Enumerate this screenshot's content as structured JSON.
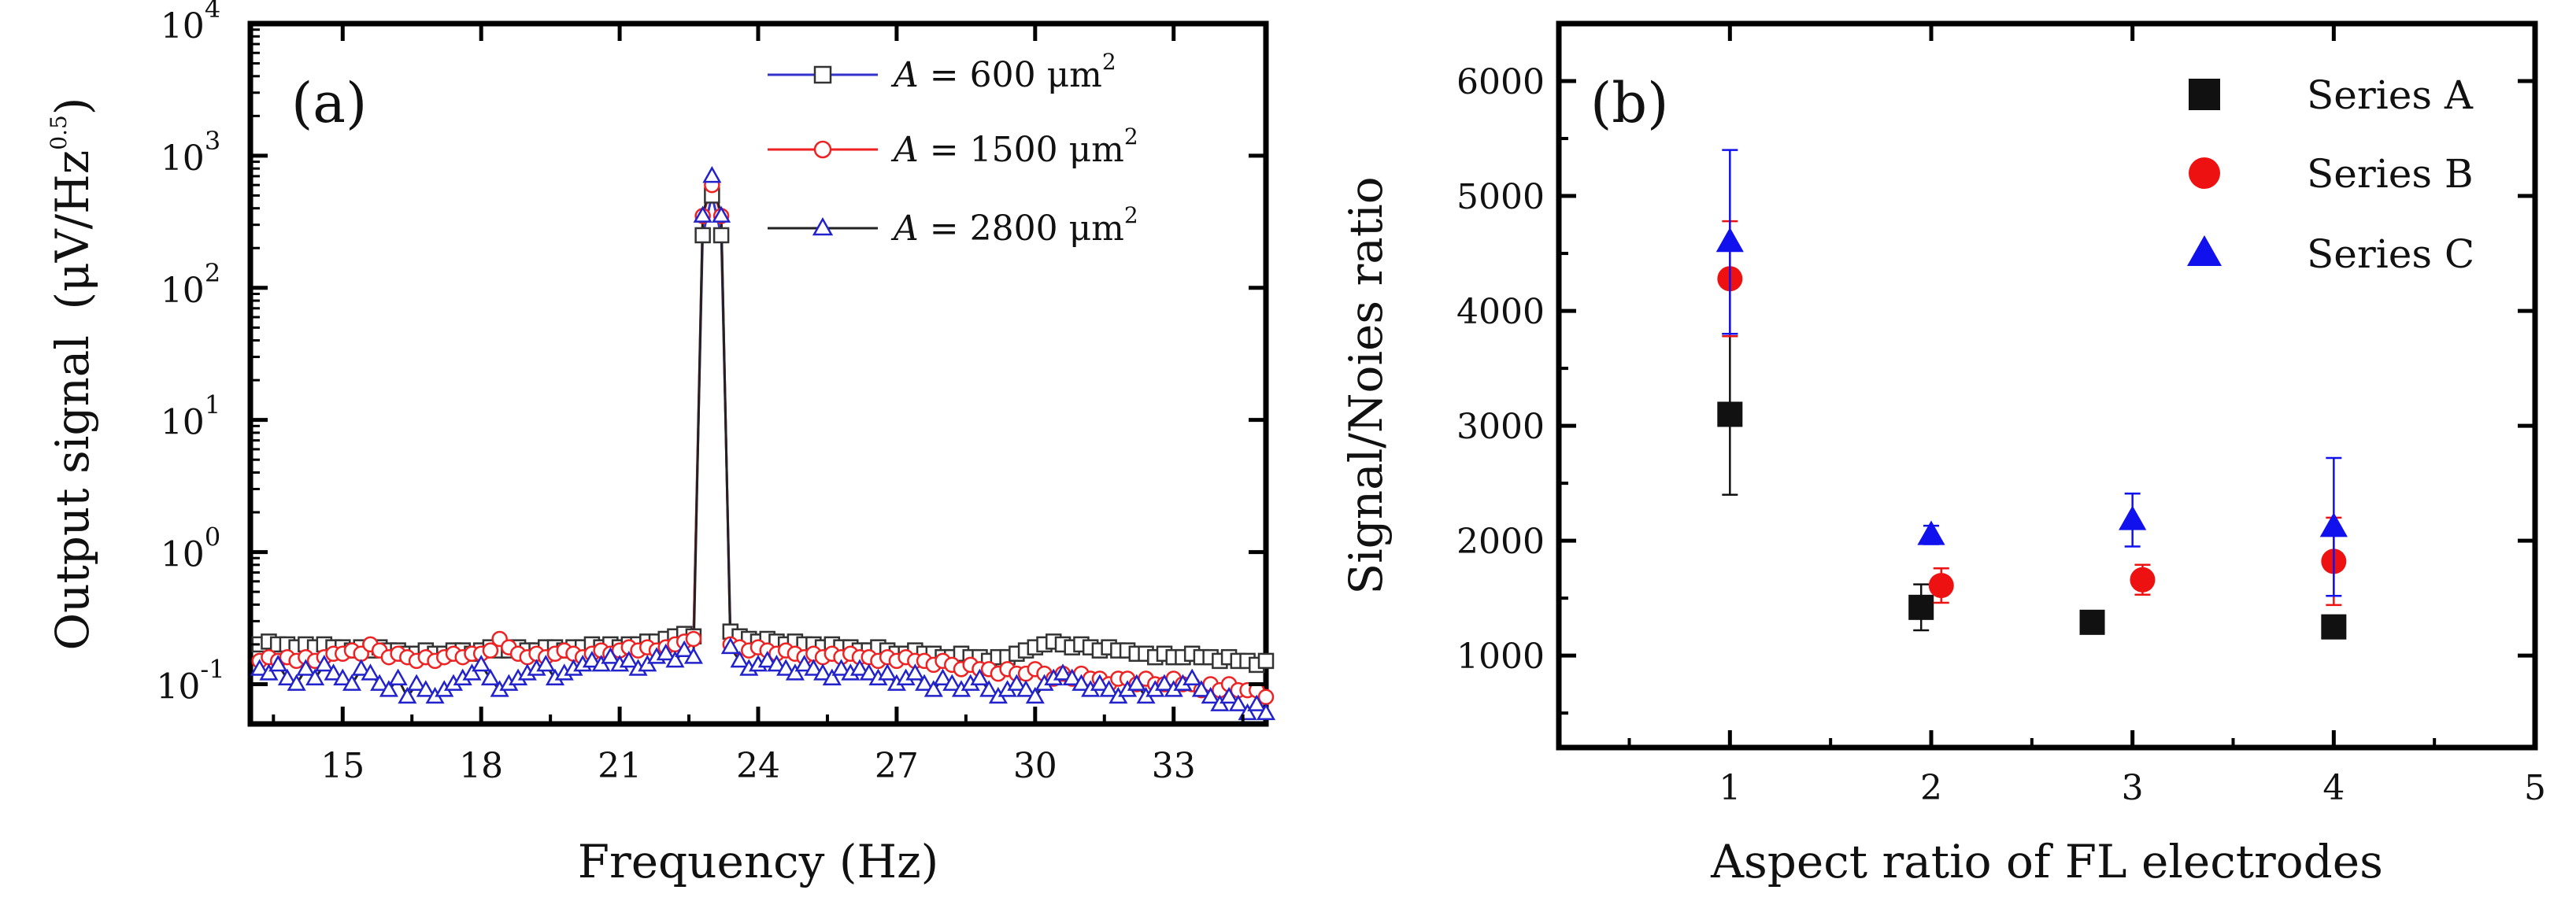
{
  "chart_data": [
    {
      "type": "line",
      "panel_label": "(a)",
      "xlabel": "Frequency (Hz)",
      "ylabel": "Output signal",
      "ylabel_unit": "(μV/Hz",
      "ylabel_unit_sup": "0.5",
      "ylabel_unit_close": ")",
      "xlim": [
        13,
        35
      ],
      "ylim": [
        0.05,
        10000
      ],
      "y_scale": "log",
      "x_ticks": [
        "15",
        "18",
        "21",
        "24",
        "27",
        "30",
        "33"
      ],
      "y_ticks": [
        {
          "base": "10",
          "exp": "-1",
          "value": 0.1
        },
        {
          "base": "10",
          "exp": "0",
          "value": 1
        },
        {
          "base": "10",
          "exp": "1",
          "value": 10
        },
        {
          "base": "10",
          "exp": "2",
          "value": 100
        },
        {
          "base": "10",
          "exp": "3",
          "value": 1000
        },
        {
          "base": "10",
          "exp": "4",
          "value": 10000
        }
      ],
      "grid": false,
      "legend_position": "top-right",
      "series": [
        {
          "name": "A = 600 μm²",
          "legend_italic": "A",
          "legend_rest": " = 600 μm",
          "legend_sup": "2",
          "marker": "square",
          "marker_color": "#333333",
          "line_color": "#3333cc",
          "x": [
            13.2,
            13.4,
            13.6,
            13.8,
            14.0,
            14.2,
            14.4,
            14.6,
            14.8,
            15.0,
            15.2,
            15.4,
            15.6,
            15.8,
            16.0,
            16.2,
            16.4,
            16.6,
            16.8,
            17.0,
            17.2,
            17.4,
            17.6,
            17.8,
            18.0,
            18.2,
            18.4,
            18.6,
            18.8,
            19.0,
            19.2,
            19.4,
            19.6,
            19.8,
            20.0,
            20.2,
            20.4,
            20.6,
            20.8,
            21.0,
            21.2,
            21.4,
            21.6,
            21.8,
            22.0,
            22.2,
            22.4,
            22.6,
            22.8,
            23.0,
            23.2,
            23.4,
            23.6,
            23.8,
            24.0,
            24.2,
            24.4,
            24.6,
            24.8,
            25.0,
            25.2,
            25.4,
            25.6,
            25.8,
            26.0,
            26.2,
            26.4,
            26.6,
            26.8,
            27.0,
            27.2,
            27.4,
            27.6,
            27.8,
            28.0,
            28.2,
            28.4,
            28.6,
            28.8,
            29.0,
            29.2,
            29.4,
            29.6,
            29.8,
            30.0,
            30.2,
            30.4,
            30.6,
            30.8,
            31.0,
            31.2,
            31.4,
            31.6,
            31.8,
            32.0,
            32.2,
            32.4,
            32.6,
            32.8,
            33.0,
            33.2,
            33.4,
            33.6,
            33.8,
            34.0,
            34.2,
            34.4,
            34.6,
            34.8,
            35.0
          ],
          "y": [
            0.2,
            0.21,
            0.2,
            0.2,
            0.19,
            0.2,
            0.19,
            0.2,
            0.19,
            0.19,
            0.18,
            0.19,
            0.18,
            0.19,
            0.18,
            0.18,
            0.17,
            0.17,
            0.18,
            0.17,
            0.17,
            0.18,
            0.18,
            0.17,
            0.18,
            0.19,
            0.18,
            0.18,
            0.19,
            0.18,
            0.18,
            0.19,
            0.19,
            0.18,
            0.19,
            0.19,
            0.2,
            0.19,
            0.2,
            0.19,
            0.2,
            0.2,
            0.21,
            0.21,
            0.22,
            0.23,
            0.24,
            0.23,
            250,
            500,
            250,
            0.25,
            0.23,
            0.22,
            0.21,
            0.22,
            0.21,
            0.2,
            0.21,
            0.2,
            0.2,
            0.19,
            0.2,
            0.19,
            0.19,
            0.18,
            0.18,
            0.19,
            0.18,
            0.17,
            0.17,
            0.18,
            0.17,
            0.17,
            0.16,
            0.16,
            0.17,
            0.16,
            0.16,
            0.15,
            0.16,
            0.16,
            0.17,
            0.18,
            0.19,
            0.2,
            0.21,
            0.2,
            0.19,
            0.2,
            0.19,
            0.18,
            0.19,
            0.18,
            0.18,
            0.17,
            0.17,
            0.16,
            0.17,
            0.16,
            0.16,
            0.17,
            0.16,
            0.16,
            0.15,
            0.16,
            0.15,
            0.15,
            0.14,
            0.15
          ]
        },
        {
          "name": "A = 1500 μm²",
          "legend_italic": "A",
          "legend_rest": " = 1500 μm",
          "legend_sup": "2",
          "marker": "circle",
          "marker_color": "#ee2222",
          "line_color": "#ee2222",
          "x": [
            13.2,
            13.4,
            13.6,
            13.8,
            14.0,
            14.2,
            14.4,
            14.6,
            14.8,
            15.0,
            15.2,
            15.4,
            15.6,
            15.8,
            16.0,
            16.2,
            16.4,
            16.6,
            16.8,
            17.0,
            17.2,
            17.4,
            17.6,
            17.8,
            18.0,
            18.2,
            18.4,
            18.6,
            18.8,
            19.0,
            19.2,
            19.4,
            19.6,
            19.8,
            20.0,
            20.2,
            20.4,
            20.6,
            20.8,
            21.0,
            21.2,
            21.4,
            21.6,
            21.8,
            22.0,
            22.2,
            22.4,
            22.6,
            22.8,
            23.0,
            23.2,
            23.4,
            23.6,
            23.8,
            24.0,
            24.2,
            24.4,
            24.6,
            24.8,
            25.0,
            25.2,
            25.4,
            25.6,
            25.8,
            26.0,
            26.2,
            26.4,
            26.6,
            26.8,
            27.0,
            27.2,
            27.4,
            27.6,
            27.8,
            28.0,
            28.2,
            28.4,
            28.6,
            28.8,
            29.0,
            29.2,
            29.4,
            29.6,
            29.8,
            30.0,
            30.2,
            30.4,
            30.6,
            30.8,
            31.0,
            31.2,
            31.4,
            31.6,
            31.8,
            32.0,
            32.2,
            32.4,
            32.6,
            32.8,
            33.0,
            33.2,
            33.4,
            33.6,
            33.8,
            34.0,
            34.2,
            34.4,
            34.6,
            34.8,
            35.0
          ],
          "y": [
            0.15,
            0.16,
            0.15,
            0.16,
            0.15,
            0.16,
            0.15,
            0.16,
            0.17,
            0.17,
            0.18,
            0.17,
            0.2,
            0.18,
            0.16,
            0.17,
            0.16,
            0.15,
            0.16,
            0.15,
            0.16,
            0.17,
            0.16,
            0.17,
            0.17,
            0.18,
            0.22,
            0.19,
            0.17,
            0.16,
            0.17,
            0.16,
            0.17,
            0.18,
            0.17,
            0.16,
            0.17,
            0.18,
            0.17,
            0.18,
            0.19,
            0.18,
            0.19,
            0.18,
            0.19,
            0.2,
            0.21,
            0.22,
            350,
            600,
            350,
            0.2,
            0.19,
            0.18,
            0.19,
            0.18,
            0.17,
            0.18,
            0.17,
            0.16,
            0.17,
            0.16,
            0.17,
            0.16,
            0.17,
            0.16,
            0.16,
            0.15,
            0.16,
            0.15,
            0.16,
            0.15,
            0.15,
            0.14,
            0.15,
            0.14,
            0.13,
            0.14,
            0.13,
            0.13,
            0.12,
            0.13,
            0.12,
            0.12,
            0.13,
            0.12,
            0.11,
            0.12,
            0.11,
            0.12,
            0.11,
            0.11,
            0.1,
            0.11,
            0.11,
            0.1,
            0.11,
            0.1,
            0.1,
            0.11,
            0.1,
            0.1,
            0.09,
            0.1,
            0.09,
            0.1,
            0.09,
            0.09,
            0.09,
            0.08
          ]
        },
        {
          "name": "A = 2800 μm²",
          "legend_italic": "A",
          "legend_rest": " = 2800 μm",
          "legend_sup": "2",
          "marker": "triangle",
          "marker_color": "#2222cc",
          "line_color": "#222222",
          "x": [
            13.2,
            13.4,
            13.6,
            13.8,
            14.0,
            14.2,
            14.4,
            14.6,
            14.8,
            15.0,
            15.2,
            15.4,
            15.6,
            15.8,
            16.0,
            16.2,
            16.4,
            16.6,
            16.8,
            17.0,
            17.2,
            17.4,
            17.6,
            17.8,
            18.0,
            18.2,
            18.4,
            18.6,
            18.8,
            19.0,
            19.2,
            19.4,
            19.6,
            19.8,
            20.0,
            20.2,
            20.4,
            20.6,
            20.8,
            21.0,
            21.2,
            21.4,
            21.6,
            21.8,
            22.0,
            22.2,
            22.4,
            22.6,
            22.8,
            23.0,
            23.2,
            23.4,
            23.6,
            23.8,
            24.0,
            24.2,
            24.4,
            24.6,
            24.8,
            25.0,
            25.2,
            25.4,
            25.6,
            25.8,
            26.0,
            26.2,
            26.4,
            26.6,
            26.8,
            27.0,
            27.2,
            27.4,
            27.6,
            27.8,
            28.0,
            28.2,
            28.4,
            28.6,
            28.8,
            29.0,
            29.2,
            29.4,
            29.6,
            29.8,
            30.0,
            30.2,
            30.4,
            30.6,
            30.8,
            31.0,
            31.2,
            31.4,
            31.6,
            31.8,
            32.0,
            32.2,
            32.4,
            32.6,
            32.8,
            33.0,
            33.2,
            33.4,
            33.6,
            33.8,
            34.0,
            34.2,
            34.4,
            34.6,
            34.8,
            35.0
          ],
          "y": [
            0.13,
            0.12,
            0.14,
            0.11,
            0.1,
            0.13,
            0.11,
            0.14,
            0.12,
            0.11,
            0.1,
            0.13,
            0.12,
            0.1,
            0.09,
            0.11,
            0.08,
            0.1,
            0.09,
            0.08,
            0.09,
            0.1,
            0.11,
            0.12,
            0.14,
            0.11,
            0.09,
            0.1,
            0.11,
            0.12,
            0.13,
            0.14,
            0.11,
            0.12,
            0.13,
            0.14,
            0.15,
            0.14,
            0.16,
            0.14,
            0.15,
            0.13,
            0.14,
            0.16,
            0.17,
            0.15,
            0.18,
            0.16,
            350,
            700,
            350,
            0.19,
            0.15,
            0.13,
            0.14,
            0.15,
            0.14,
            0.13,
            0.12,
            0.14,
            0.13,
            0.12,
            0.11,
            0.13,
            0.12,
            0.13,
            0.12,
            0.11,
            0.12,
            0.1,
            0.11,
            0.12,
            0.1,
            0.09,
            0.11,
            0.1,
            0.09,
            0.1,
            0.11,
            0.09,
            0.08,
            0.09,
            0.1,
            0.09,
            0.08,
            0.1,
            0.11,
            0.12,
            0.11,
            0.1,
            0.09,
            0.1,
            0.09,
            0.08,
            0.09,
            0.1,
            0.08,
            0.09,
            0.1,
            0.09,
            0.1,
            0.11,
            0.09,
            0.08,
            0.07,
            0.08,
            0.07,
            0.06,
            0.07,
            0.06
          ]
        }
      ]
    },
    {
      "type": "scatter",
      "panel_label": "(b)",
      "xlabel": "Aspect ratio of FL electrodes",
      "ylabel": "Signal/Noies ratio",
      "xlim": [
        0.15,
        5.0
      ],
      "ylim": [
        200,
        6500
      ],
      "x_ticks": [
        "1",
        "2",
        "3",
        "4",
        "5"
      ],
      "y_ticks": [
        "1000",
        "2000",
        "3000",
        "4000",
        "5000",
        "6000"
      ],
      "grid": false,
      "legend_position": "top-right",
      "series": [
        {
          "name": "Series A",
          "marker": "square",
          "color": "#111111",
          "x": [
            1,
            1.95,
            2.8,
            4
          ],
          "y": [
            3100,
            1420,
            1290,
            1250
          ],
          "err": [
            700,
            200,
            0,
            0
          ]
        },
        {
          "name": "Series B",
          "marker": "circle",
          "color": "#ee1111",
          "x": [
            1,
            2.05,
            3.05,
            4
          ],
          "y": [
            4280,
            1610,
            1660,
            1820
          ],
          "err": [
            500,
            150,
            130,
            380
          ]
        },
        {
          "name": "Series C",
          "marker": "triangle",
          "color": "#1111ee",
          "x": [
            1,
            2,
            3,
            4
          ],
          "y": [
            4600,
            2050,
            2180,
            2120
          ],
          "err": [
            800,
            80,
            230,
            600
          ]
        }
      ]
    }
  ]
}
